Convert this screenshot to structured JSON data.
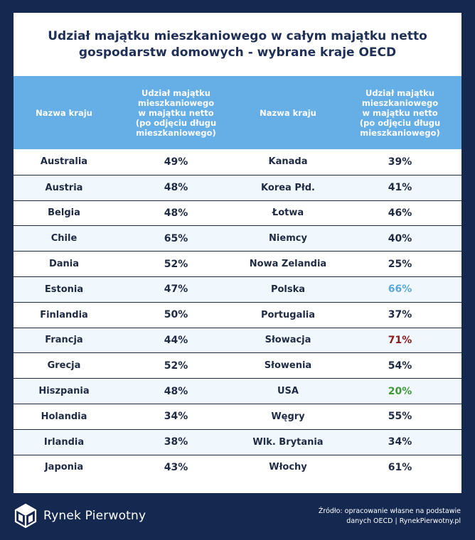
{
  "title": {
    "line1": "Udział majątku mieszkaniowego w całym majątku netto",
    "line2": "gospodarstw domowych - wybrane kraje OECD"
  },
  "table": {
    "headers": [
      "Nazwa kraju",
      "Udział majątku\nmieszkaniowego\nw majątku netto\n(po odjęciu długu\nmieszkaniowego)",
      "Nazwa kraju",
      "Udział majątku\nmieszkaniowego\nw majątku netto\n(po odjęciu długu\nmieszkaniowego)"
    ],
    "rows": [
      {
        "country1": "Australia",
        "value1": "49%",
        "country2": "Kanada",
        "value2": "39%"
      },
      {
        "country1": "Austria",
        "value1": "48%",
        "country2": "Korea Płd.",
        "value2": "41%"
      },
      {
        "country1": "Belgia",
        "value1": "48%",
        "country2": "Łotwa",
        "value2": "46%"
      },
      {
        "country1": "Chile",
        "value1": "65%",
        "country2": "Niemcy",
        "value2": "40%"
      },
      {
        "country1": "Dania",
        "value1": "52%",
        "country2": "Nowa Zelandia",
        "value2": "25%"
      },
      {
        "country1": "Estonia",
        "value1": "47%",
        "country2": "Polska",
        "value2": "66%",
        "color2": "#5ba8dc"
      },
      {
        "country1": "Finlandia",
        "value1": "50%",
        "country2": "Portugalia",
        "value2": "37%"
      },
      {
        "country1": "Francja",
        "value1": "44%",
        "country2": "Słowacja",
        "value2": "71%",
        "color2": "#8b1a1a"
      },
      {
        "country1": "Grecja",
        "value1": "52%",
        "country2": "Słowenia",
        "value2": "54%"
      },
      {
        "country1": "Hiszpania",
        "value1": "48%",
        "country2": "USA",
        "value2": "20%",
        "color2": "#3d9a35"
      },
      {
        "country1": "Holandia",
        "value1": "34%",
        "country2": "Węgry",
        "value2": "55%"
      },
      {
        "country1": "Irlandia",
        "value1": "38%",
        "country2": "Wlk. Brytania",
        "value2": "34%"
      },
      {
        "country1": "Japonia",
        "value1": "43%",
        "country2": "Włochy",
        "value2": "61%"
      }
    ]
  },
  "chart_data": {
    "type": "table",
    "columns": [
      "Nazwa kraju",
      "Udział majątku mieszkaniowego w majątku netto (po odjęciu długu mieszkaniowego)"
    ],
    "categories": [
      "Australia",
      "Austria",
      "Belgia",
      "Chile",
      "Dania",
      "Estonia",
      "Finlandia",
      "Francja",
      "Grecja",
      "Hiszpania",
      "Holandia",
      "Irlandia",
      "Japonia",
      "Kanada",
      "Korea Płd.",
      "Łotwa",
      "Niemcy",
      "Nowa Zelandia",
      "Polska",
      "Portugalia",
      "Słowacja",
      "Słowenia",
      "USA",
      "Węgry",
      "Wlk. Brytania",
      "Włochy"
    ],
    "values": [
      49,
      48,
      48,
      65,
      52,
      47,
      50,
      44,
      52,
      48,
      34,
      38,
      43,
      39,
      41,
      46,
      40,
      25,
      66,
      37,
      71,
      54,
      20,
      55,
      34,
      61
    ],
    "unit": "%",
    "highlight_colors": {
      "Polska": "#5ba8dc",
      "Słowacja": "#8b1a1a",
      "USA": "#3d9a35"
    }
  },
  "colors": {
    "background": "#152850",
    "header": "#66aee6",
    "alt_row": "#f1f8fd",
    "text": "#1f2a44"
  },
  "footer": {
    "brand": "Rynek Pierwotny",
    "source_line1": "Źródło: opracowanie własne na podstawie",
    "source_line2": "danych OECD | RynekPierwotny.pl"
  }
}
